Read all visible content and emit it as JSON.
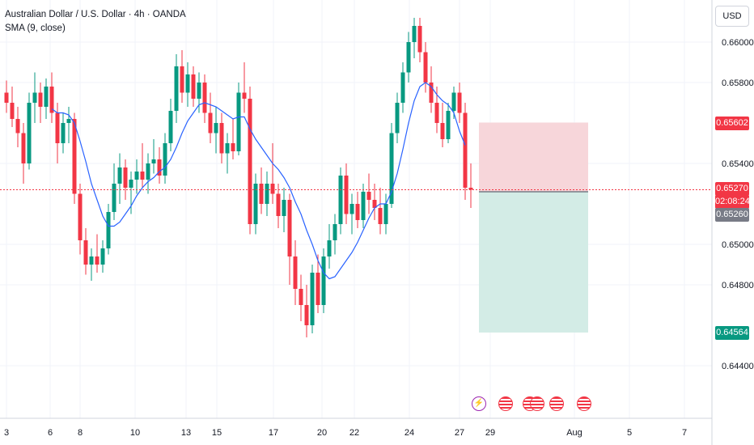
{
  "header": {
    "symbol_title": "Australian Dollar / U.S. Dollar · 4h · OANDA",
    "indicator_label": "SMA (9, close)",
    "currency_button": "USD"
  },
  "price_tags": {
    "stop_loss": {
      "value": "0.65602",
      "color": "#f23645"
    },
    "current": {
      "value": "0.65270",
      "countdown": "02:08:24",
      "color": "#f23645"
    },
    "entry": {
      "value": "0.65260",
      "color": "#787b86"
    },
    "take_profit": {
      "value": "0.64564",
      "color": "#089981"
    }
  },
  "events": {
    "flash_icon": "lightning-icon",
    "us_flag_icon": "us-flag-icon",
    "count_us": 5
  },
  "colors": {
    "up": "#089981",
    "down": "#f23645",
    "sma": "#2962ff",
    "stop_zone": "#f7d6da",
    "profit_zone": "#d3ece6"
  },
  "chart_data": {
    "type": "candlestick",
    "title": "Australian Dollar / U.S. Dollar · 4h · OANDA",
    "indicator": "SMA (9, close)",
    "ylim": [
      0.642,
      0.6616
    ],
    "y_ticks": [
      "0.66000",
      "0.65800",
      "0.65400",
      "0.65000",
      "0.64800",
      "0.64400"
    ],
    "x_ticks": [
      "3",
      "6",
      "8",
      "10",
      "13",
      "15",
      "17",
      "20",
      "22",
      "24",
      "27",
      "29",
      "Aug",
      "5",
      "7"
    ],
    "grid": true,
    "last_price": 0.6527,
    "position": {
      "type": "short",
      "entry": 0.6526,
      "stop_loss": 0.65602,
      "take_profit": 0.64564
    },
    "ohlc": [
      [
        0.6575,
        0.6581,
        0.6565,
        0.657
      ],
      [
        0.657,
        0.6578,
        0.6558,
        0.6562
      ],
      [
        0.6562,
        0.6568,
        0.6548,
        0.6555
      ],
      [
        0.6555,
        0.656,
        0.653,
        0.654
      ],
      [
        0.654,
        0.6575,
        0.6537,
        0.657
      ],
      [
        0.657,
        0.6585,
        0.656,
        0.6575
      ],
      [
        0.6575,
        0.658,
        0.656,
        0.6568
      ],
      [
        0.6568,
        0.6582,
        0.6562,
        0.6578
      ],
      [
        0.6578,
        0.6585,
        0.656,
        0.6565
      ],
      [
        0.6565,
        0.657,
        0.654,
        0.655
      ],
      [
        0.655,
        0.6565,
        0.6545,
        0.656
      ],
      [
        0.656,
        0.6568,
        0.655,
        0.6562
      ],
      [
        0.6562,
        0.6565,
        0.652,
        0.6525
      ],
      [
        0.6525,
        0.653,
        0.6495,
        0.6502
      ],
      [
        0.6502,
        0.6508,
        0.6485,
        0.649
      ],
      [
        0.649,
        0.6498,
        0.6482,
        0.6494
      ],
      [
        0.6494,
        0.6505,
        0.6486,
        0.649
      ],
      [
        0.649,
        0.6502,
        0.6486,
        0.6498
      ],
      [
        0.6498,
        0.652,
        0.6495,
        0.6516
      ],
      [
        0.6516,
        0.654,
        0.6512,
        0.653
      ],
      [
        0.653,
        0.6545,
        0.652,
        0.6538
      ],
      [
        0.6538,
        0.6542,
        0.6522,
        0.6528
      ],
      [
        0.6528,
        0.6536,
        0.6515,
        0.6532
      ],
      [
        0.6532,
        0.6542,
        0.6525,
        0.6536
      ],
      [
        0.6536,
        0.655,
        0.6528,
        0.6532
      ],
      [
        0.6532,
        0.6545,
        0.6525,
        0.654
      ],
      [
        0.654,
        0.6552,
        0.6535,
        0.6542
      ],
      [
        0.6542,
        0.6548,
        0.653,
        0.6534
      ],
      [
        0.6534,
        0.6555,
        0.653,
        0.655
      ],
      [
        0.655,
        0.6572,
        0.6546,
        0.6566
      ],
      [
        0.6566,
        0.6594,
        0.656,
        0.6588
      ],
      [
        0.6588,
        0.6596,
        0.657,
        0.6575
      ],
      [
        0.6575,
        0.659,
        0.6568,
        0.6584
      ],
      [
        0.6584,
        0.6588,
        0.6568,
        0.6572
      ],
      [
        0.6572,
        0.6585,
        0.6565,
        0.658
      ],
      [
        0.658,
        0.6584,
        0.656,
        0.6565
      ],
      [
        0.6565,
        0.6575,
        0.655,
        0.6555
      ],
      [
        0.6555,
        0.6568,
        0.6545,
        0.656
      ],
      [
        0.656,
        0.6565,
        0.654,
        0.6545
      ],
      [
        0.6545,
        0.6555,
        0.6535,
        0.655
      ],
      [
        0.655,
        0.6562,
        0.6542,
        0.6546
      ],
      [
        0.6546,
        0.658,
        0.6544,
        0.6575
      ],
      [
        0.6575,
        0.659,
        0.6565,
        0.6572
      ],
      [
        0.6572,
        0.6578,
        0.6505,
        0.651
      ],
      [
        0.651,
        0.6535,
        0.6505,
        0.653
      ],
      [
        0.653,
        0.6538,
        0.6515,
        0.652
      ],
      [
        0.652,
        0.6536,
        0.6514,
        0.653
      ],
      [
        0.653,
        0.655,
        0.652,
        0.6525
      ],
      [
        0.6525,
        0.653,
        0.6508,
        0.6514
      ],
      [
        0.6514,
        0.6528,
        0.6506,
        0.6522
      ],
      [
        0.6522,
        0.6525,
        0.648,
        0.6494
      ],
      [
        0.6494,
        0.6502,
        0.647,
        0.6478
      ],
      [
        0.6478,
        0.6485,
        0.6462,
        0.647
      ],
      [
        0.647,
        0.648,
        0.6454,
        0.646
      ],
      [
        0.646,
        0.649,
        0.6456,
        0.6486
      ],
      [
        0.6486,
        0.6495,
        0.6466,
        0.647
      ],
      [
        0.647,
        0.6498,
        0.6466,
        0.6494
      ],
      [
        0.6494,
        0.651,
        0.6488,
        0.6502
      ],
      [
        0.6502,
        0.6515,
        0.6495,
        0.651
      ],
      [
        0.651,
        0.6538,
        0.6505,
        0.6534
      ],
      [
        0.6534,
        0.654,
        0.651,
        0.6515
      ],
      [
        0.6515,
        0.6525,
        0.6505,
        0.652
      ],
      [
        0.652,
        0.6526,
        0.6508,
        0.6512
      ],
      [
        0.6512,
        0.653,
        0.6508,
        0.6526
      ],
      [
        0.6526,
        0.6535,
        0.6515,
        0.6522
      ],
      [
        0.6522,
        0.653,
        0.6512,
        0.6518
      ],
      [
        0.6518,
        0.6528,
        0.6505,
        0.651
      ],
      [
        0.651,
        0.6525,
        0.6505,
        0.652
      ],
      [
        0.652,
        0.656,
        0.6518,
        0.6555
      ],
      [
        0.6555,
        0.6575,
        0.655,
        0.657
      ],
      [
        0.657,
        0.659,
        0.6565,
        0.6585
      ],
      [
        0.6585,
        0.6605,
        0.658,
        0.66
      ],
      [
        0.66,
        0.6612,
        0.6592,
        0.6608
      ],
      [
        0.6608,
        0.6612,
        0.659,
        0.6595
      ],
      [
        0.6595,
        0.66,
        0.6575,
        0.658
      ],
      [
        0.658,
        0.6588,
        0.6565,
        0.657
      ],
      [
        0.657,
        0.6578,
        0.6555,
        0.656
      ],
      [
        0.656,
        0.657,
        0.6548,
        0.6552
      ],
      [
        0.6552,
        0.657,
        0.655,
        0.6566
      ],
      [
        0.6566,
        0.6578,
        0.6562,
        0.6575
      ],
      [
        0.6575,
        0.658,
        0.656,
        0.6565
      ],
      [
        0.6565,
        0.657,
        0.6522,
        0.6528
      ],
      [
        0.6528,
        0.654,
        0.6518,
        0.6527
      ]
    ],
    "sma": [
      null,
      null,
      null,
      null,
      null,
      null,
      null,
      null,
      0.6567,
      0.6565,
      0.6565,
      0.6564,
      0.656,
      0.6551,
      0.6541,
      0.653,
      0.6522,
      0.6514,
      0.6509,
      0.6509,
      0.6511,
      0.6515,
      0.6519,
      0.6524,
      0.6528,
      0.6531,
      0.6533,
      0.6536,
      0.6538,
      0.6542,
      0.6548,
      0.6555,
      0.6561,
      0.6565,
      0.6569,
      0.657,
      0.6569,
      0.6568,
      0.6566,
      0.6564,
      0.6562,
      0.6563,
      0.6563,
      0.6557,
      0.6552,
      0.6548,
      0.6544,
      0.654,
      0.6537,
      0.6533,
      0.6528,
      0.6521,
      0.6515,
      0.6507,
      0.65,
      0.6492,
      0.6486,
      0.6483,
      0.6484,
      0.6488,
      0.6492,
      0.6496,
      0.6501,
      0.6507,
      0.6513,
      0.6518,
      0.652,
      0.652,
      0.6526,
      0.6535,
      0.6547,
      0.656,
      0.6571,
      0.6578,
      0.658,
      0.6578,
      0.6574,
      0.6571,
      0.6569,
      0.6565,
      0.6556,
      0.6549
    ]
  }
}
